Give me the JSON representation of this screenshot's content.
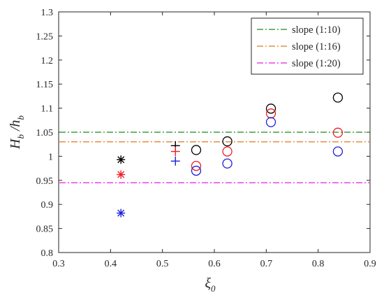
{
  "chart_data": {
    "type": "scatter",
    "xlim": [
      0.3,
      0.9
    ],
    "ylim": [
      0.8,
      1.3
    ],
    "xticks": [
      "0.3",
      "0.4",
      "0.5",
      "0.6",
      "0.7",
      "0.8",
      "0.9"
    ],
    "yticks": [
      "0.8",
      "0.85",
      "0.9",
      "0.95",
      "1",
      "1.05",
      "1.1",
      "1.15",
      "1.2",
      "1.25",
      "1.3"
    ],
    "xlabel": {
      "main": "ξ",
      "sub": "0"
    },
    "ylabel": {
      "a": "H",
      "a_sub": "b",
      "sep": " /",
      "b": "h",
      "b_sub": "b"
    },
    "grid": false,
    "legend_position": "top-right",
    "reference_lines": [
      {
        "name": "slope (1:10)",
        "y": 1.05,
        "color": "#1a8a1a"
      },
      {
        "name": "slope (1:16)",
        "y": 1.03,
        "color": "#e07b1f"
      },
      {
        "name": "slope (1:20)",
        "y": 0.945,
        "color": "#e51ee5"
      }
    ],
    "series": [
      {
        "marker": "asterisk",
        "color": "#000000",
        "points": [
          [
            0.42,
            0.993
          ]
        ]
      },
      {
        "marker": "asterisk",
        "color": "#ee1c24",
        "points": [
          [
            0.42,
            0.962
          ]
        ]
      },
      {
        "marker": "asterisk",
        "color": "#1f1fd9",
        "points": [
          [
            0.42,
            0.882
          ]
        ]
      },
      {
        "marker": "plus",
        "color": "#000000",
        "points": [
          [
            0.525,
            1.022
          ]
        ]
      },
      {
        "marker": "plus",
        "color": "#ee1c24",
        "points": [
          [
            0.525,
            1.01
          ]
        ]
      },
      {
        "marker": "plus",
        "color": "#1f1fd9",
        "points": [
          [
            0.525,
            0.99
          ]
        ]
      },
      {
        "marker": "circle",
        "color": "#000000",
        "points": [
          [
            0.565,
            1.013
          ],
          [
            0.625,
            1.031
          ],
          [
            0.709,
            1.099
          ],
          [
            0.838,
            1.122
          ]
        ]
      },
      {
        "marker": "circle",
        "color": "#ee1c24",
        "points": [
          [
            0.565,
            0.98
          ],
          [
            0.625,
            1.01
          ],
          [
            0.709,
            1.089
          ],
          [
            0.838,
            1.049
          ]
        ]
      },
      {
        "marker": "circle",
        "color": "#1f1fd9",
        "points": [
          [
            0.565,
            0.97
          ],
          [
            0.625,
            0.985
          ],
          [
            0.709,
            1.071
          ],
          [
            0.838,
            1.01
          ]
        ]
      }
    ]
  }
}
